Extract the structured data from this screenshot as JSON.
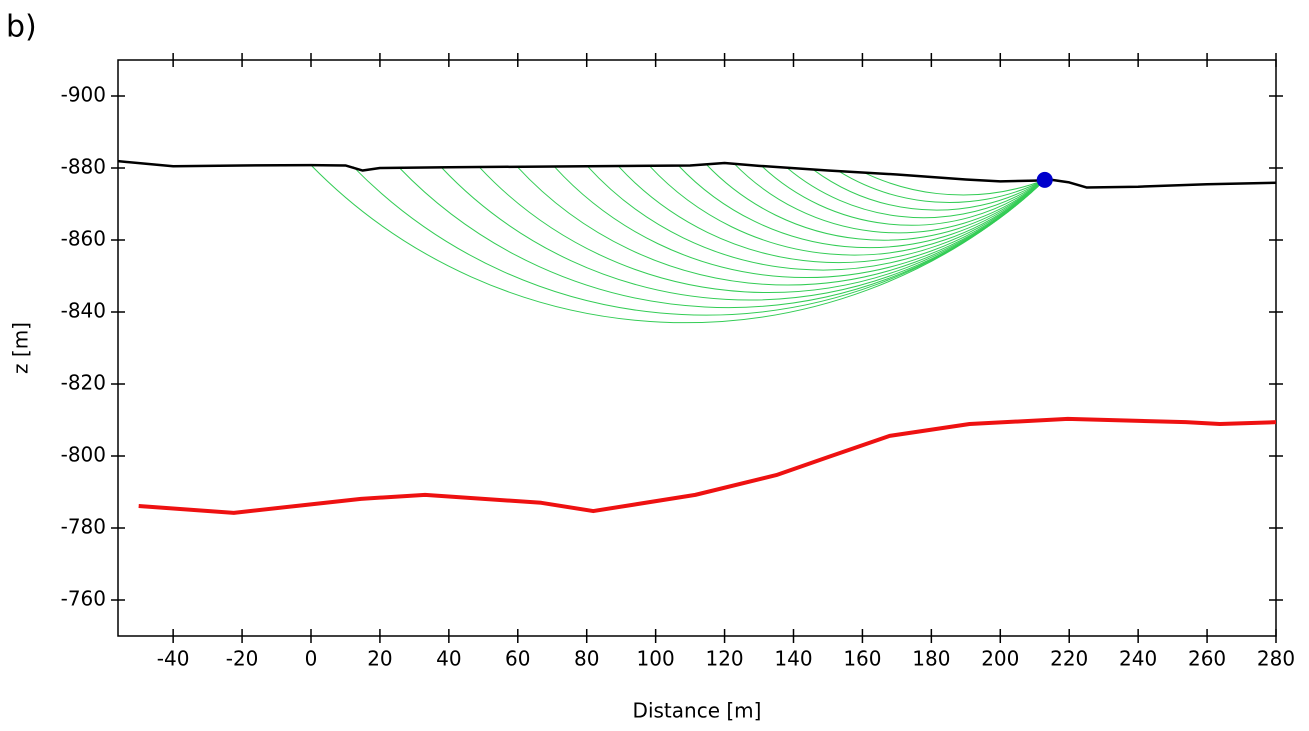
{
  "chart_data": {
    "type": "line",
    "panel_label": "b)",
    "xlabel": "Distance [m]",
    "ylabel": "z [m]",
    "xlim": [
      -56,
      280
    ],
    "ylim": [
      -750,
      -910
    ],
    "xticks": [
      -40,
      -20,
      0,
      20,
      40,
      60,
      80,
      100,
      120,
      140,
      160,
      180,
      200,
      220,
      240,
      260,
      280
    ],
    "yticks": [
      -900,
      -880,
      -860,
      -840,
      -820,
      -800,
      -780,
      -760
    ],
    "series": [
      {
        "color": "#000000",
        "width": 2.5,
        "x": [
          -56,
          -40,
          -20,
          0,
          10,
          15,
          20,
          40,
          80,
          110,
          120,
          130,
          150,
          170,
          190,
          200,
          210,
          215,
          220,
          225,
          240,
          260,
          280
        ],
        "values": [
          -881.9,
          -880.5,
          -880.7,
          -880.8,
          -880.7,
          -879.3,
          -880.0,
          -880.2,
          -880.5,
          -880.7,
          -881.4,
          -880.6,
          -879.3,
          -878.2,
          -876.8,
          -876.3,
          -876.5,
          -876.7,
          -876.0,
          -874.6,
          -874.8,
          -875.5,
          -875.9
        ]
      },
      {
        "color": "#ee1111",
        "width": 4,
        "x": [
          -50,
          -22.4,
          -1.7,
          14.5,
          33.1,
          66.8,
          81.9,
          111.5,
          135,
          150,
          167.9,
          191.1,
          219.6,
          253.8,
          263.7,
          280
        ],
        "values": [
          -786.1,
          -784.2,
          -786.4,
          -788.1,
          -789.2,
          -787.0,
          -784.7,
          -789.2,
          -794.7,
          -799.7,
          -805.6,
          -808.9,
          -810.3,
          -809.4,
          -808.9,
          -809.4
        ]
      }
    ],
    "slip_circles": {
      "color": "#33cc55",
      "arcs": [
        {
          "x": [
            0,
            101.5,
            212.9
          ],
          "values": [
            -880.8,
            -837.2,
            -876.7
          ]
        },
        {
          "x": [
            12.2,
            107.6,
            212.9
          ],
          "values": [
            -880.4,
            -839.3,
            -876.7
          ]
        },
        {
          "x": [
            25.6,
            114.3,
            212.9
          ],
          "values": [
            -880.1,
            -841.4,
            -876.7
          ]
        },
        {
          "x": [
            37.8,
            120.4,
            212.9
          ],
          "values": [
            -880.2,
            -843.5,
            -876.7
          ]
        },
        {
          "x": [
            48.8,
            125.9,
            212.9
          ],
          "values": [
            -880.3,
            -845.6,
            -876.7
          ]
        },
        {
          "x": [
            59.8,
            131.4,
            212.9
          ],
          "values": [
            -880.4,
            -847.7,
            -876.7
          ]
        },
        {
          "x": [
            70.6,
            136.8,
            212.9
          ],
          "values": [
            -880.4,
            -849.8,
            -876.7
          ]
        },
        {
          "x": [
            80.2,
            141.6,
            212.9
          ],
          "values": [
            -880.5,
            -851.9,
            -876.7
          ]
        },
        {
          "x": [
            89.2,
            146.1,
            212.9
          ],
          "values": [
            -880.5,
            -854.0,
            -876.7
          ]
        },
        {
          "x": [
            98.2,
            150.6,
            212.9
          ],
          "values": [
            -880.6,
            -856.1,
            -876.7
          ]
        },
        {
          "x": [
            106.6,
            154.8,
            212.9
          ],
          "values": [
            -880.7,
            -858.2,
            -876.7
          ]
        },
        {
          "x": [
            114.7,
            158.9,
            212.9
          ],
          "values": [
            -881.0,
            -860.3,
            -876.7
          ]
        },
        {
          "x": [
            122.8,
            162.9,
            212.9
          ],
          "values": [
            -881.2,
            -862.4,
            -876.7
          ]
        },
        {
          "x": [
            130.7,
            166.9,
            212.9
          ],
          "values": [
            -880.6,
            -864.5,
            -876.7
          ]
        },
        {
          "x": [
            138.2,
            170.6,
            212.9
          ],
          "values": [
            -880.0,
            -866.6,
            -876.7
          ]
        },
        {
          "x": [
            145.8,
            174.4,
            212.9
          ],
          "values": [
            -879.5,
            -868.7,
            -876.7
          ]
        },
        {
          "x": [
            153.3,
            178.2,
            212.9
          ],
          "values": [
            -879.0,
            -870.8,
            -876.7
          ]
        },
        {
          "x": [
            160.3,
            181.7,
            212.9
          ],
          "values": [
            -878.8,
            -872.9,
            -876.7
          ]
        }
      ]
    },
    "points": {
      "color": "#0000cc",
      "x": [
        212.9
      ],
      "values": [
        -876.7
      ]
    }
  }
}
